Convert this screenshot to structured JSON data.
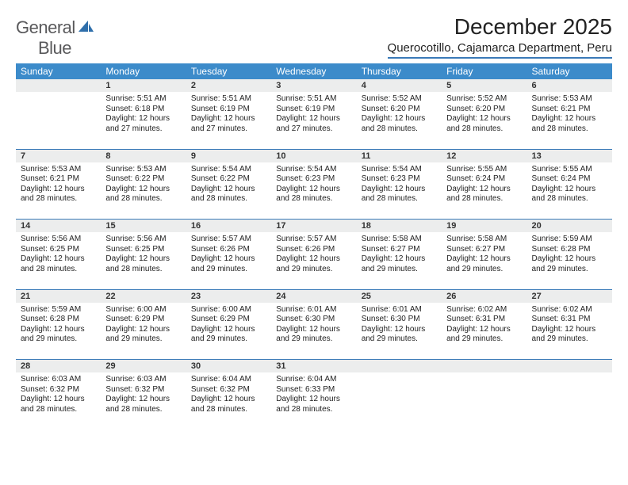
{
  "brand": {
    "part1": "General",
    "part2": "Blue"
  },
  "title": "December 2025",
  "location": "Querocotillo, Cajamarca Department, Peru",
  "colors": {
    "header_bg": "#3c8bca",
    "header_text": "#ffffff",
    "rule": "#3a7ab8",
    "daynum_bg": "#eceded",
    "logo_gray": "#59595b",
    "logo_blue": "#2f6fab"
  },
  "day_names": [
    "Sunday",
    "Monday",
    "Tuesday",
    "Wednesday",
    "Thursday",
    "Friday",
    "Saturday"
  ],
  "weeks": [
    [
      {
        "n": "",
        "t": ""
      },
      {
        "n": "1",
        "t": "Sunrise: 5:51 AM\nSunset: 6:18 PM\nDaylight: 12 hours and 27 minutes."
      },
      {
        "n": "2",
        "t": "Sunrise: 5:51 AM\nSunset: 6:19 PM\nDaylight: 12 hours and 27 minutes."
      },
      {
        "n": "3",
        "t": "Sunrise: 5:51 AM\nSunset: 6:19 PM\nDaylight: 12 hours and 27 minutes."
      },
      {
        "n": "4",
        "t": "Sunrise: 5:52 AM\nSunset: 6:20 PM\nDaylight: 12 hours and 28 minutes."
      },
      {
        "n": "5",
        "t": "Sunrise: 5:52 AM\nSunset: 6:20 PM\nDaylight: 12 hours and 28 minutes."
      },
      {
        "n": "6",
        "t": "Sunrise: 5:53 AM\nSunset: 6:21 PM\nDaylight: 12 hours and 28 minutes."
      }
    ],
    [
      {
        "n": "7",
        "t": "Sunrise: 5:53 AM\nSunset: 6:21 PM\nDaylight: 12 hours and 28 minutes."
      },
      {
        "n": "8",
        "t": "Sunrise: 5:53 AM\nSunset: 6:22 PM\nDaylight: 12 hours and 28 minutes."
      },
      {
        "n": "9",
        "t": "Sunrise: 5:54 AM\nSunset: 6:22 PM\nDaylight: 12 hours and 28 minutes."
      },
      {
        "n": "10",
        "t": "Sunrise: 5:54 AM\nSunset: 6:23 PM\nDaylight: 12 hours and 28 minutes."
      },
      {
        "n": "11",
        "t": "Sunrise: 5:54 AM\nSunset: 6:23 PM\nDaylight: 12 hours and 28 minutes."
      },
      {
        "n": "12",
        "t": "Sunrise: 5:55 AM\nSunset: 6:24 PM\nDaylight: 12 hours and 28 minutes."
      },
      {
        "n": "13",
        "t": "Sunrise: 5:55 AM\nSunset: 6:24 PM\nDaylight: 12 hours and 28 minutes."
      }
    ],
    [
      {
        "n": "14",
        "t": "Sunrise: 5:56 AM\nSunset: 6:25 PM\nDaylight: 12 hours and 28 minutes."
      },
      {
        "n": "15",
        "t": "Sunrise: 5:56 AM\nSunset: 6:25 PM\nDaylight: 12 hours and 28 minutes."
      },
      {
        "n": "16",
        "t": "Sunrise: 5:57 AM\nSunset: 6:26 PM\nDaylight: 12 hours and 29 minutes."
      },
      {
        "n": "17",
        "t": "Sunrise: 5:57 AM\nSunset: 6:26 PM\nDaylight: 12 hours and 29 minutes."
      },
      {
        "n": "18",
        "t": "Sunrise: 5:58 AM\nSunset: 6:27 PM\nDaylight: 12 hours and 29 minutes."
      },
      {
        "n": "19",
        "t": "Sunrise: 5:58 AM\nSunset: 6:27 PM\nDaylight: 12 hours and 29 minutes."
      },
      {
        "n": "20",
        "t": "Sunrise: 5:59 AM\nSunset: 6:28 PM\nDaylight: 12 hours and 29 minutes."
      }
    ],
    [
      {
        "n": "21",
        "t": "Sunrise: 5:59 AM\nSunset: 6:28 PM\nDaylight: 12 hours and 29 minutes."
      },
      {
        "n": "22",
        "t": "Sunrise: 6:00 AM\nSunset: 6:29 PM\nDaylight: 12 hours and 29 minutes."
      },
      {
        "n": "23",
        "t": "Sunrise: 6:00 AM\nSunset: 6:29 PM\nDaylight: 12 hours and 29 minutes."
      },
      {
        "n": "24",
        "t": "Sunrise: 6:01 AM\nSunset: 6:30 PM\nDaylight: 12 hours and 29 minutes."
      },
      {
        "n": "25",
        "t": "Sunrise: 6:01 AM\nSunset: 6:30 PM\nDaylight: 12 hours and 29 minutes."
      },
      {
        "n": "26",
        "t": "Sunrise: 6:02 AM\nSunset: 6:31 PM\nDaylight: 12 hours and 29 minutes."
      },
      {
        "n": "27",
        "t": "Sunrise: 6:02 AM\nSunset: 6:31 PM\nDaylight: 12 hours and 29 minutes."
      }
    ],
    [
      {
        "n": "28",
        "t": "Sunrise: 6:03 AM\nSunset: 6:32 PM\nDaylight: 12 hours and 28 minutes."
      },
      {
        "n": "29",
        "t": "Sunrise: 6:03 AM\nSunset: 6:32 PM\nDaylight: 12 hours and 28 minutes."
      },
      {
        "n": "30",
        "t": "Sunrise: 6:04 AM\nSunset: 6:32 PM\nDaylight: 12 hours and 28 minutes."
      },
      {
        "n": "31",
        "t": "Sunrise: 6:04 AM\nSunset: 6:33 PM\nDaylight: 12 hours and 28 minutes."
      },
      {
        "n": "",
        "t": ""
      },
      {
        "n": "",
        "t": ""
      },
      {
        "n": "",
        "t": ""
      }
    ]
  ]
}
